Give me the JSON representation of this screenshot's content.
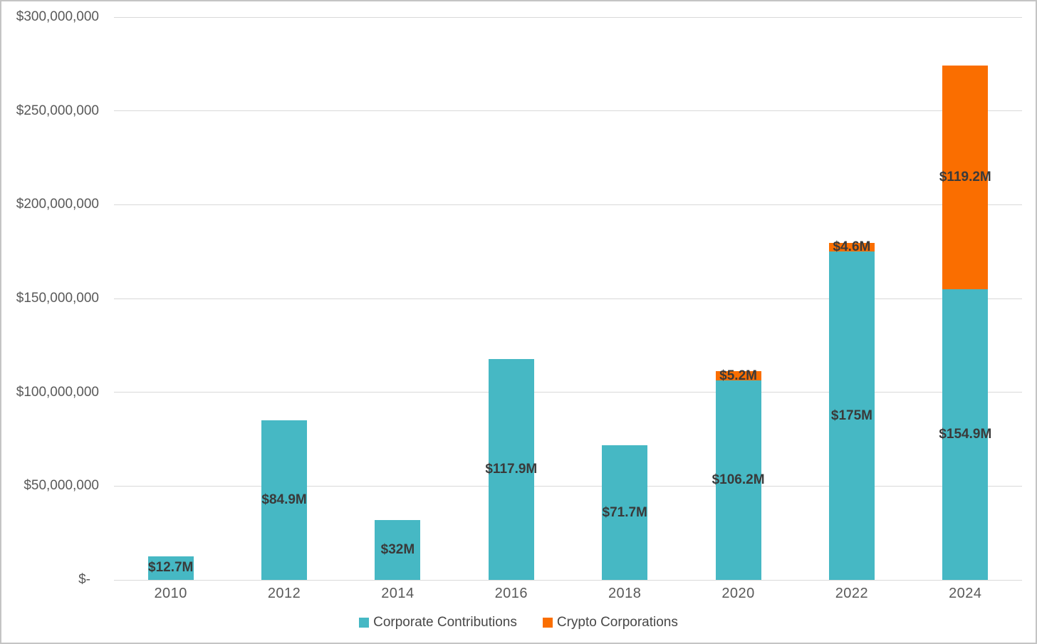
{
  "chart_data": {
    "type": "bar",
    "stacked": true,
    "title": "",
    "xlabel": "",
    "ylabel": "",
    "grid": true,
    "legend_position": "bottom",
    "categories": [
      "2010",
      "2012",
      "2014",
      "2016",
      "2018",
      "2020",
      "2022",
      "2024"
    ],
    "series": [
      {
        "name": "Corporate Contributions",
        "color": "#46b8c4",
        "values": [
          12700000,
          84900000,
          32000000,
          117900000,
          71700000,
          106200000,
          175000000,
          154900000
        ],
        "labels": [
          "$12.7M",
          "$84.9M",
          "$32M",
          "$117.9M",
          "$71.7M",
          "$106.2M",
          "$175M",
          "$154.9M"
        ]
      },
      {
        "name": "Crypto Corporations",
        "color": "#fa6e00",
        "values": [
          0,
          0,
          0,
          0,
          0,
          5200000,
          4600000,
          119200000
        ],
        "labels": [
          "",
          "",
          "",
          "",
          "",
          "$5.2M",
          "$4.6M",
          "$119.2M"
        ]
      }
    ],
    "y_axis": {
      "min": 0,
      "max": 300000000,
      "ticks": [
        "$300,000,000",
        "$250,000,000",
        "$200,000,000",
        "$150,000,000",
        "$100,000,000",
        "$50,000,000",
        "$-"
      ]
    }
  },
  "colors": {
    "gridline": "#d9d9d9",
    "axis_text": "#595959",
    "data_label": "#3a3a3a",
    "legend_text": "#474747",
    "frame_border": "#c4c4c4",
    "background": "#ffffff"
  }
}
